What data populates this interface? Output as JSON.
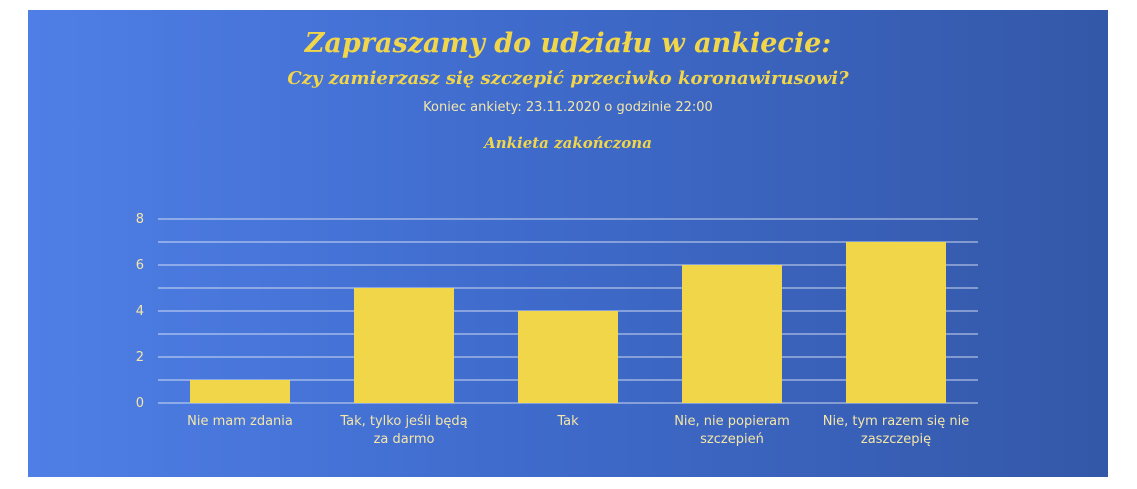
{
  "header": {
    "title": "Zapraszamy do udziału w ankiecie:",
    "question": "Czy zamierzasz się szczepić przeciwko koronawirusowi?",
    "deadline": "Koniec ankiety: 23.11.2020 o godzinie 22:00",
    "status": "Ankieta zakończona"
  },
  "colors": {
    "bar": "#f2d64a",
    "grid": "#e8eef8",
    "text": "#f4e6a8"
  },
  "chart_data": {
    "type": "bar",
    "categories": [
      [
        "Nie mam zdania"
      ],
      [
        "Tak, tylko jeśli będą",
        "za darmo"
      ],
      [
        "Tak"
      ],
      [
        "Nie, nie popieram",
        "szczepień"
      ],
      [
        "Nie, tym razem się nie",
        "zaszczepię"
      ]
    ],
    "values": [
      1,
      5,
      4,
      6,
      7
    ],
    "ylim": [
      0,
      8
    ],
    "yticks": [
      0,
      2,
      4,
      6,
      8
    ],
    "grid": true,
    "minor_grid_step": 1
  }
}
